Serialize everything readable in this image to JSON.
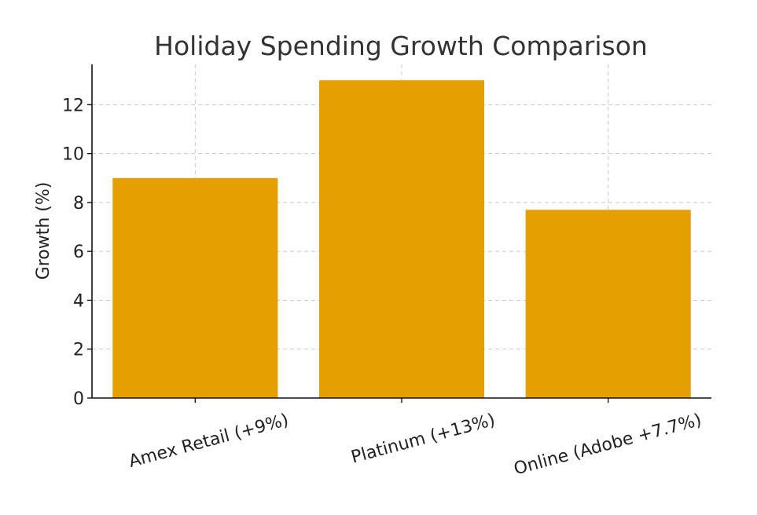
{
  "chart_data": {
    "type": "bar",
    "title": "Holiday Spending Growth Comparison",
    "xlabel": "",
    "ylabel": "Growth (%)",
    "categories": [
      "Amex Retail (+9%)",
      "Platinum (+13%)",
      "Online (Adobe +7.7%)"
    ],
    "values": [
      9,
      13,
      7.7
    ],
    "ylim": [
      0,
      13.65
    ],
    "yticks": [
      0,
      2,
      4,
      6,
      8,
      10,
      12
    ],
    "grid": true,
    "bar_color": "#E69F00"
  }
}
